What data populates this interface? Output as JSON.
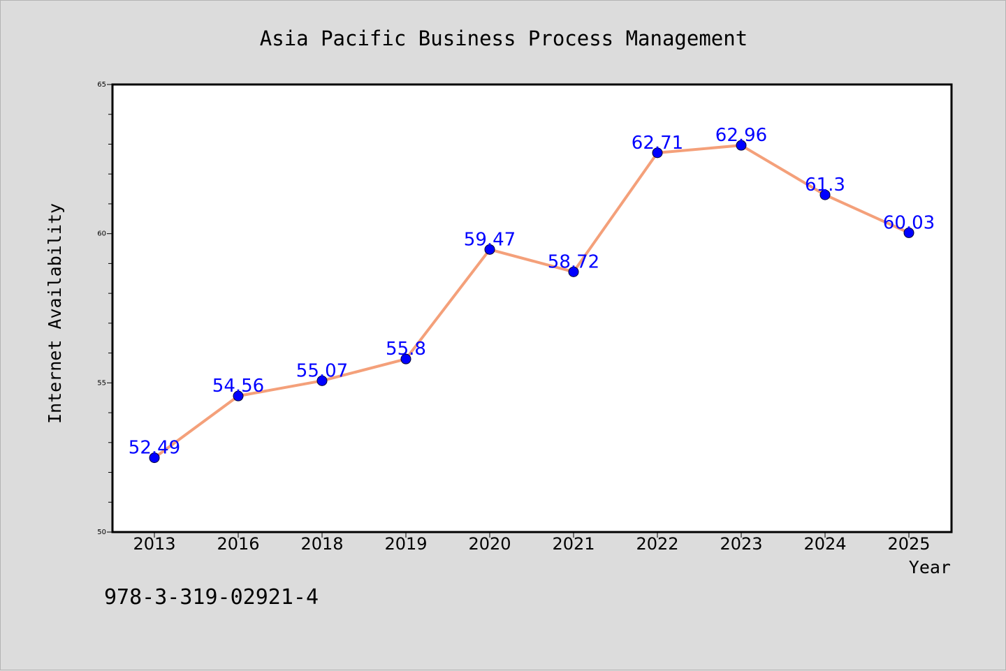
{
  "chart_data": {
    "type": "line",
    "title": "Asia Pacific Business Process Management",
    "xlabel": "Year",
    "ylabel": "Internet Availability",
    "categories": [
      "2013",
      "2016",
      "2018",
      "2019",
      "2020",
      "2021",
      "2022",
      "2023",
      "2024",
      "2025"
    ],
    "values": [
      52.49,
      54.56,
      55.07,
      55.8,
      59.47,
      58.72,
      62.71,
      62.96,
      61.3,
      60.03
    ],
    "data_labels": [
      "52.49",
      "54.56",
      "55.07",
      "55.8",
      "59.47",
      "58.72",
      "62.71",
      "62.96",
      "61.3",
      "60.03"
    ],
    "ylim": [
      50,
      65
    ],
    "yticks": [
      "50",
      "55",
      "60",
      "65"
    ],
    "grid": false,
    "legend": false,
    "line_color": "#f4a07a",
    "marker_color": "#0000ff",
    "label_color": "#0000ff"
  },
  "footer": {
    "isbn": "978-3-319-02921-4"
  },
  "colors": {
    "background": "#dcdcdc",
    "plot_background": "#ffffff"
  }
}
